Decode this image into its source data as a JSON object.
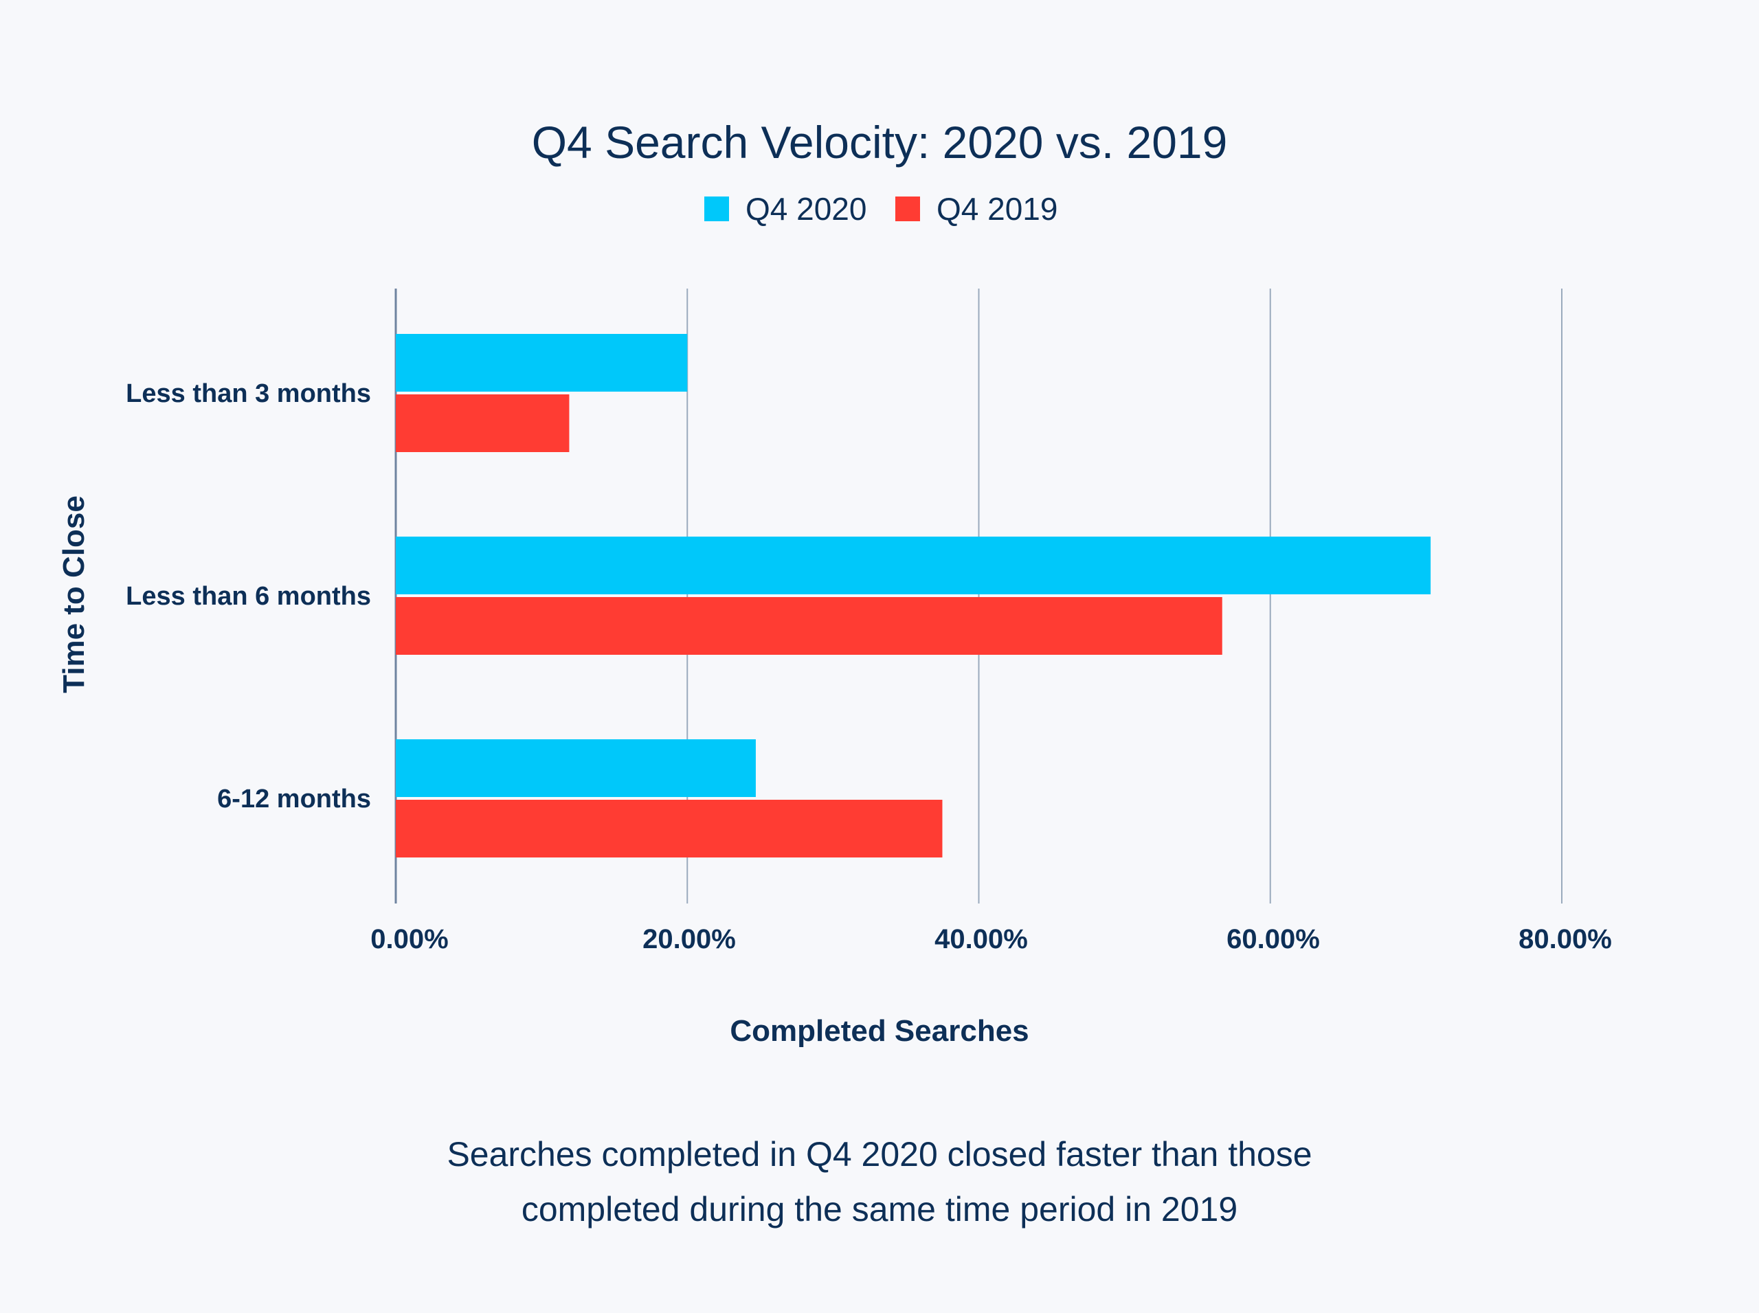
{
  "chart_data": {
    "type": "bar",
    "orientation": "horizontal",
    "title": "Q4 Search Velocity: 2020 vs. 2019",
    "xlabel": "Completed Searches",
    "ylabel": "Time to Close",
    "categories": [
      "Less than 3 months",
      "Less than 6 months",
      "6-12 months"
    ],
    "series": [
      {
        "name": "Q4 2020",
        "color": "#00c8fa",
        "values": [
          20.0,
          71.0,
          24.7
        ]
      },
      {
        "name": "Q4 2019",
        "color": "#ff3c33",
        "values": [
          11.9,
          56.7,
          37.5
        ]
      }
    ],
    "xlim": [
      0,
      80
    ],
    "xticks": [
      "0.00%",
      "20.00%",
      "40.00%",
      "60.00%",
      "80.00%"
    ],
    "xtick_values": [
      0,
      20,
      40,
      60,
      80
    ],
    "grid": true,
    "legend_position": "top-center",
    "caption_lines": [
      "Searches completed in Q4 2020 closed faster than those",
      "completed during the same time period in 2019"
    ]
  }
}
